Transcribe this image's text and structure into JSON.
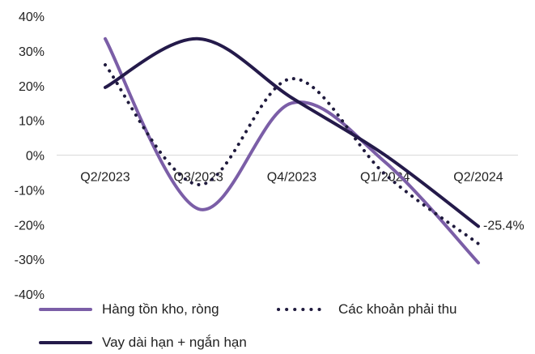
{
  "chart_data": {
    "type": "line",
    "categories": [
      "Q2/2023",
      "Q3/2023",
      "Q4/2023",
      "Q1/2024",
      "Q2/2024"
    ],
    "ylim": [
      -40,
      40
    ],
    "yticks": [
      "40%",
      "30%",
      "20%",
      "10%",
      "0%",
      "-10%",
      "-20%",
      "-30%",
      "-40%"
    ],
    "grid": false,
    "legend_position": "bottom",
    "series": [
      {
        "name": "Hàng tồn kho, ròng",
        "values": [
          33.5,
          -15.5,
          15,
          -2,
          -31
        ],
        "color": "#7b5ea7",
        "style": "solid"
      },
      {
        "name": "Các khoản phải thu",
        "values": [
          26,
          -8.5,
          22,
          -5.5,
          -25.5
        ],
        "color": "#1f1a3d",
        "style": "dotted"
      },
      {
        "name": "Vay dài hạn + ngắn hạn",
        "values": [
          19.5,
          33.5,
          16.5,
          0,
          -20.5
        ],
        "color": "#241a4a",
        "style": "solid"
      }
    ],
    "annotation": "-25.4%"
  }
}
